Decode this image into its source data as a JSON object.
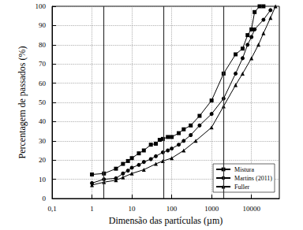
{
  "chart_data": {
    "type": "line",
    "x_label": "Dimensão das partículas (µm)",
    "y_label": "Percentagem de passados (%)",
    "log": "x",
    "grid": true,
    "legend": "lower right",
    "xlim": [
      0.1,
      50000
    ],
    "xticks": [
      {
        "value": 0.1,
        "label": "0,1"
      },
      1,
      10,
      100,
      1000,
      10000
    ],
    "ylim": [
      0,
      100
    ],
    "yticks": [
      0,
      10,
      20,
      30,
      40,
      50,
      60,
      70,
      80,
      90,
      100
    ],
    "vertical_lines": [
      2,
      63,
      2000
    ],
    "series": [
      {
        "name": "Mistura",
        "color": "#000000",
        "marker": "square",
        "x": [
          1,
          2,
          4,
          6,
          8,
          10,
          15,
          20,
          30,
          40,
          50,
          60,
          80,
          100,
          150,
          200,
          300,
          500,
          1000,
          2000,
          4000,
          6000,
          8000,
          10000,
          12000,
          16000,
          20000
        ],
        "values": [
          12.5,
          13,
          15.5,
          18,
          19.5,
          21,
          23.5,
          25,
          28,
          28.5,
          30.5,
          31,
          32,
          32,
          34,
          36,
          38,
          43,
          51,
          65,
          75,
          78,
          85,
          88,
          97,
          100,
          100
        ]
      },
      {
        "name": "Martins (2011)",
        "color": "#000000",
        "marker": "circle",
        "x": [
          1,
          2,
          4,
          6,
          8,
          10,
          15,
          20,
          30,
          40,
          60,
          80,
          100,
          150,
          200,
          300,
          500,
          1000,
          2000,
          4000,
          6000,
          8000,
          10000,
          12000,
          20000,
          30000
        ],
        "values": [
          8,
          10,
          10.5,
          13,
          14.5,
          16,
          17.5,
          19,
          20.5,
          22,
          24,
          25,
          26,
          28,
          30,
          33,
          38,
          44,
          52,
          65,
          73,
          80,
          84,
          88,
          93,
          98
        ]
      },
      {
        "name": "Fuller",
        "color": "#000000",
        "marker": "triangle",
        "x": [
          1,
          2,
          4,
          6,
          10,
          20,
          40,
          60,
          100,
          200,
          400,
          1000,
          2000,
          4000,
          6000,
          10000,
          15000,
          20000,
          30000,
          40000
        ],
        "values": [
          7,
          8.5,
          9.5,
          11,
          13,
          15,
          18,
          19.5,
          21,
          25,
          30,
          37,
          48,
          59,
          65,
          73,
          80,
          86,
          94,
          100
        ]
      }
    ]
  }
}
